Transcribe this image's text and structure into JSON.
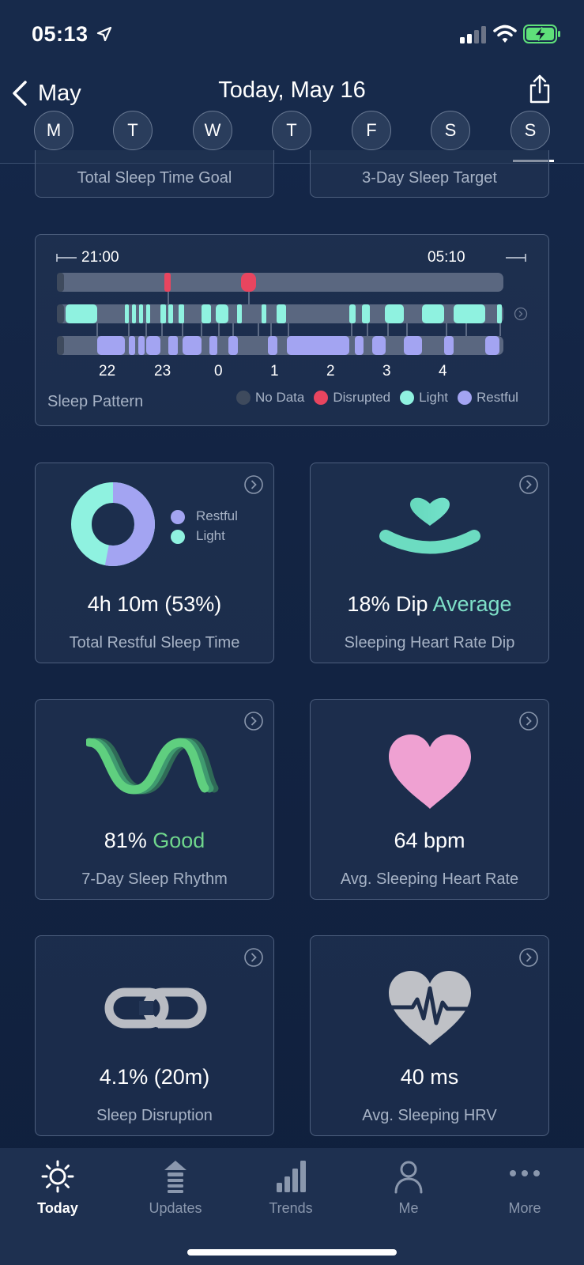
{
  "status_bar": {
    "time": "05:13"
  },
  "header": {
    "back_label": "May",
    "title": "Today, May 16",
    "days": [
      "M",
      "T",
      "W",
      "T",
      "F",
      "S",
      "S"
    ],
    "selected_day_index": 6
  },
  "goal_cards": [
    "Total Sleep Time Goal",
    "3-Day Sleep Target"
  ],
  "sleep_pattern": {
    "start_time": "21:00",
    "end_time": "05:10",
    "hour_labels": [
      "22",
      "23",
      "0",
      "1",
      "2",
      "3",
      "4"
    ],
    "title": "Sleep Pattern",
    "legend": [
      {
        "label": "No Data",
        "color": "#3e4a5d"
      },
      {
        "label": "Disrupted",
        "color": "#e8455f"
      },
      {
        "label": "Light",
        "color": "#8ff2e0"
      },
      {
        "label": "Restful",
        "color": "#a3a4f2"
      }
    ]
  },
  "cards": {
    "restful": {
      "value": "4h 10m (53%)",
      "label": "Total Restful Sleep Time",
      "legend": [
        "Restful",
        "Light"
      ],
      "restful_fraction": 0.53
    },
    "heart_rate_dip": {
      "value": "18% Dip",
      "status": "Average",
      "status_color": "#7ee0c8",
      "label": "Sleeping Heart Rate Dip"
    },
    "rhythm": {
      "value": "81%",
      "status": "Good",
      "status_color": "#6fd68c",
      "label": "7-Day Sleep Rhythm"
    },
    "heart_rate": {
      "value": "64 bpm",
      "label": "Avg. Sleeping Heart Rate"
    },
    "disruption": {
      "value": "4.1% (20m)",
      "label": "Sleep Disruption"
    },
    "hrv": {
      "value": "40 ms",
      "label": "Avg. Sleeping HRV"
    }
  },
  "tab_bar": {
    "tabs": [
      "Today",
      "Updates",
      "Trends",
      "Me",
      "More"
    ],
    "active_index": 0
  },
  "icons": [
    "location-arrow-icon",
    "signal-icon",
    "wifi-icon",
    "battery-charging-icon",
    "back-chevron-icon",
    "share-icon",
    "chevron-right-circle-icon",
    "heart-dip-icon",
    "sleep-rhythm-wave-icon",
    "heart-icon",
    "chain-link-icon",
    "heart-ecg-icon",
    "sun-icon",
    "updates-icon",
    "bar-chart-icon",
    "person-icon",
    "more-dots-icon"
  ]
}
